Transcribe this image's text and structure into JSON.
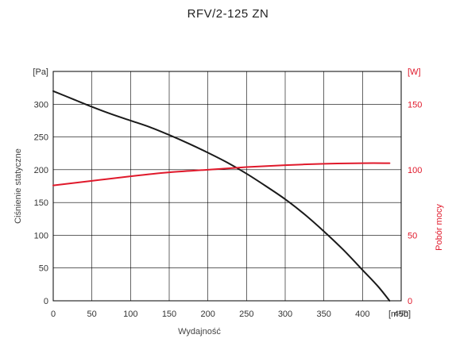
{
  "chart_data": {
    "type": "line",
    "title": "RFV/2-125 ZN",
    "xlabel": "Wydajność",
    "ylabel": "Ciśnienie statyczne",
    "y2label": "Pobór mocy",
    "x_unit": "[m³/h]",
    "y_unit": "[Pa]",
    "y2_unit": "[W]",
    "xlim": [
      0,
      450
    ],
    "ylim": [
      0,
      350
    ],
    "y2lim": [
      0,
      175
    ],
    "x_ticks": [
      "0",
      "50",
      "100",
      "150",
      "200",
      "250",
      "300",
      "350",
      "400",
      "450"
    ],
    "y_ticks": [
      "0",
      "50",
      "100",
      "150",
      "200",
      "250",
      "300"
    ],
    "y2_ticks": [
      "0",
      "50",
      "100",
      "150"
    ],
    "grid": true,
    "series": [
      {
        "axis": "left",
        "color": "#1a1a1a",
        "x": [
          0,
          25,
          50,
          75,
          100,
          125,
          150,
          175,
          200,
          225,
          250,
          275,
          300,
          325,
          350,
          375,
          400,
          420,
          435
        ],
        "values": [
          320,
          308,
          296,
          285,
          275,
          265,
          253,
          240,
          226,
          211,
          194,
          175,
          155,
          132,
          106,
          78,
          47,
          22,
          0
        ]
      },
      {
        "axis": "right",
        "color": "#e0192b",
        "x": [
          0,
          50,
          100,
          150,
          200,
          250,
          300,
          350,
          400,
          435
        ],
        "values": [
          88,
          91.5,
          95,
          98,
          100,
          102,
          103.5,
          104.5,
          105,
          105
        ]
      }
    ]
  }
}
